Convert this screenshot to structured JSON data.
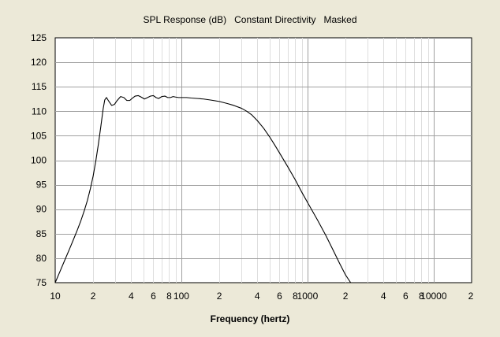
{
  "chart_data": {
    "type": "line",
    "title": "SPL Response (dB)   Constant Directivity   Masked",
    "xlabel": "Frequency (hertz)",
    "ylabel": "",
    "x_scale": "log",
    "xlim": [
      10,
      20000
    ],
    "ylim": [
      75,
      125
    ],
    "grid": true,
    "y_ticks": [
      75,
      80,
      85,
      90,
      95,
      100,
      105,
      110,
      115,
      120,
      125
    ],
    "x_ticks": [
      {
        "value": 10,
        "label": "10"
      },
      {
        "value": 20,
        "label": "2"
      },
      {
        "value": 40,
        "label": "4"
      },
      {
        "value": 60,
        "label": "6"
      },
      {
        "value": 80,
        "label": "8"
      },
      {
        "value": 100,
        "label": "100"
      },
      {
        "value": 200,
        "label": "2"
      },
      {
        "value": 400,
        "label": "4"
      },
      {
        "value": 600,
        "label": "6"
      },
      {
        "value": 800,
        "label": "8"
      },
      {
        "value": 1000,
        "label": "1000"
      },
      {
        "value": 2000,
        "label": "2"
      },
      {
        "value": 4000,
        "label": "4"
      },
      {
        "value": 6000,
        "label": "6"
      },
      {
        "value": 8000,
        "label": "8"
      },
      {
        "value": 10000,
        "label": "10000"
      },
      {
        "value": 20000,
        "label": "2"
      }
    ],
    "series": [
      {
        "color": "#000000",
        "x": [
          10,
          11,
          12,
          13,
          14,
          15,
          16,
          17,
          18,
          19,
          20,
          21,
          22,
          23,
          24,
          24.7,
          25.5,
          26.5,
          28,
          29.5,
          31,
          33,
          35,
          37,
          39,
          41,
          43,
          45.5,
          48,
          51,
          54,
          57,
          60,
          63,
          66,
          70,
          74,
          78,
          82,
          86,
          90,
          95,
          100,
          110,
          120,
          135,
          150,
          170,
          200,
          230,
          260,
          300,
          330,
          360,
          400,
          450,
          500,
          550,
          600,
          700,
          800,
          900,
          1000,
          1200,
          1400,
          1600,
          1800,
          2000,
          2200,
          2350
        ],
        "y": [
          75,
          77.5,
          79.8,
          81.9,
          83.9,
          85.8,
          87.7,
          89.7,
          91.8,
          94.2,
          96.8,
          99.9,
          103.3,
          106.9,
          110.5,
          112.3,
          112.8,
          112.1,
          111.2,
          111.4,
          112.2,
          113.0,
          112.8,
          112.2,
          112.2,
          112.7,
          113.1,
          113.2,
          112.9,
          112.5,
          112.8,
          113.1,
          113.2,
          112.8,
          112.6,
          113.0,
          113.1,
          112.8,
          112.8,
          113.0,
          112.9,
          112.8,
          112.8,
          112.8,
          112.7,
          112.6,
          112.5,
          112.3,
          112.0,
          111.6,
          111.2,
          110.6,
          110.0,
          109.3,
          108.1,
          106.5,
          104.8,
          103.1,
          101.5,
          98.6,
          96.0,
          93.5,
          91.4,
          87.8,
          84.6,
          81.6,
          78.9,
          76.6,
          75.0,
          75.0
        ]
      }
    ]
  }
}
